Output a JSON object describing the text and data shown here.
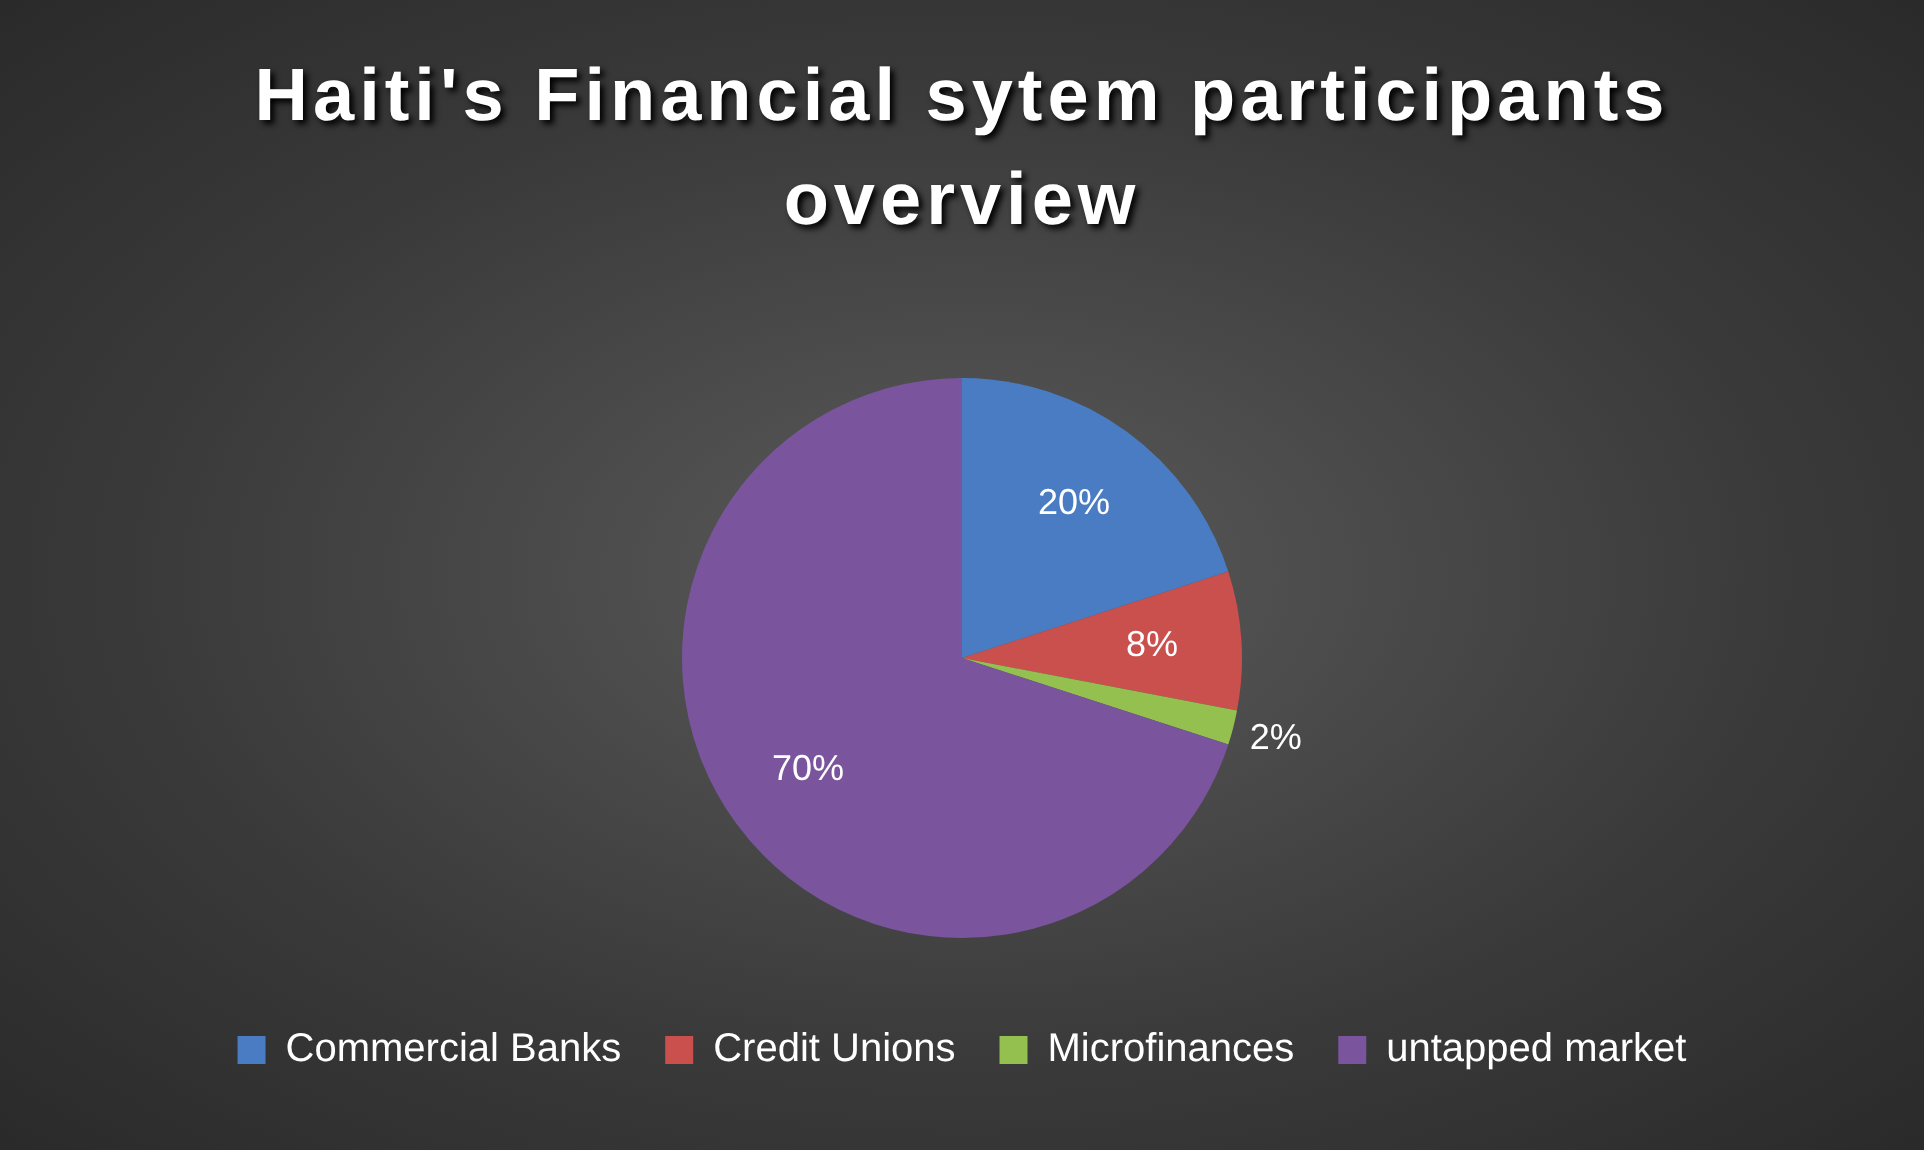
{
  "chart_data": {
    "type": "pie",
    "title": "Haiti's Financial sytem participants overview",
    "categories": [
      "Commercial Banks",
      "Credit Unions",
      "Microfinances",
      "untapped market"
    ],
    "values": [
      20,
      8,
      2,
      70
    ],
    "colors": [
      "#4a7cc4",
      "#c9504d",
      "#94c04f",
      "#7a559d"
    ],
    "value_labels": [
      "20%",
      "8%",
      "2%",
      "70%"
    ],
    "legend": "bottom"
  }
}
